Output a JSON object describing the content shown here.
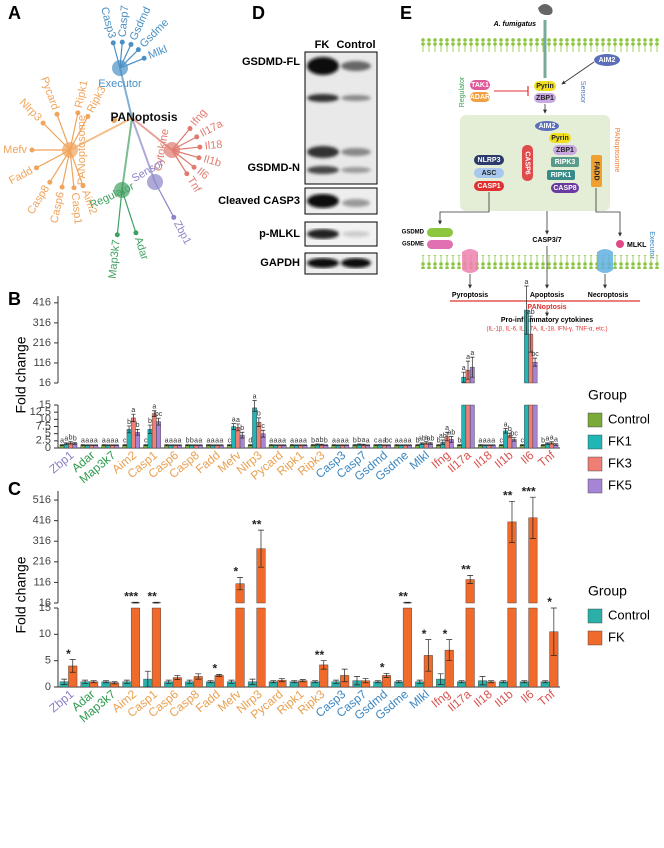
{
  "network": {
    "panel_label": "A",
    "center": "PANoptosis",
    "groups": [
      {
        "name": "Executor",
        "color": "#4a90c4",
        "genes": [
          "Casp3",
          "Casp7",
          "Gsdmd",
          "Gsdme",
          "Mlkl"
        ]
      },
      {
        "name": "Cytokine",
        "color": "#e07b6e",
        "genes": [
          "Ifng",
          "Il17a",
          "Il18",
          "Il1b",
          "Il6",
          "Tnf"
        ]
      },
      {
        "name": "Sensor",
        "color": "#8c86c8",
        "genes": [
          "Zbp1"
        ]
      },
      {
        "name": "Regulator",
        "color": "#3fa060",
        "genes": [
          "Map3k7",
          "Adar"
        ]
      },
      {
        "name": "PANoptosome",
        "color": "#f0a45c",
        "genes": [
          "Ripk3",
          "Ripk1",
          "Pycard",
          "Nlrp3",
          "Mefv",
          "Fadd",
          "Casp8",
          "Casp6",
          "Casp1",
          "Aim2"
        ]
      }
    ]
  },
  "blot": {
    "panel_label": "D",
    "lanes": [
      "FK",
      "Control"
    ],
    "rows": [
      "GSDMD-FL",
      "GSDMD-N",
      "Cleaved CASP3",
      "p-MLKL",
      "GAPDH"
    ]
  },
  "pathway": {
    "panel_label": "E",
    "pathogen": "A. fumigatus",
    "aim2_top": "AIM2",
    "tak1": "TAK1",
    "adar": "ADAR",
    "regulator": "Regulator",
    "pyrin_top": "Pyrin",
    "zbp1_top": "ZBP1",
    "sensor": "Sensor",
    "aim2": "AIM2",
    "pyrin": "Pyrin",
    "nlrp3": "NLRP3",
    "zbp1": "ZBP1",
    "asc": "ASC",
    "casp6": "CASP6",
    "ripk3": "RIPK3",
    "casp1": "CASP1",
    "ripk1": "RIPK1",
    "fadd": "FADD",
    "casp8": "CASP8",
    "panoptosome": "PANoptosome",
    "gsdmd": "GSDMD",
    "gsdme": "GSDME",
    "casp37": "CASP3/7",
    "mlkl": "MLKL",
    "executor": "Executor",
    "pyroptosis": "Pyroptosis",
    "apoptosis": "Apoptosis",
    "necroptosis": "Necroptosis",
    "panoptosis": "PANoptosis",
    "cytokines": "Pro-inflammatory cytokines",
    "cytokine_list": "(IL-1β, IL-6, IL-17A, IL-18, IFN-γ, TNF-α, etc.)"
  },
  "chart_data": [
    {
      "type": "bar",
      "panel_label": "B",
      "y_label": "Fold change",
      "legend_title": "Group",
      "categories": [
        "Zbp1",
        "Adar",
        "Map3k7",
        "Aim2",
        "Casp1",
        "Casp6",
        "Casp8",
        "Fadd",
        "Mefv",
        "Nlrp3",
        "Pycard",
        "Ripk1",
        "Ripk3",
        "Casp3",
        "Casp7",
        "Gsdmd",
        "Gsdme",
        "Mlkl",
        "Ifng",
        "Il17a",
        "Il18",
        "Il1b",
        "Il6",
        "Tnf"
      ],
      "category_colors": [
        "#8a7fc8",
        "#2e9a4e",
        "#2e9a4e",
        "#e8a050",
        "#e8a050",
        "#e8a050",
        "#e8a050",
        "#e8a050",
        "#e8a050",
        "#e8a050",
        "#e8a050",
        "#e8a050",
        "#e8a050",
        "#3a86c0",
        "#3a86c0",
        "#3a86c0",
        "#3a86c0",
        "#3a86c0",
        "#d9534f",
        "#d9534f",
        "#d9534f",
        "#d9534f",
        "#d9534f",
        "#d9534f"
      ],
      "lower_axis": {
        "ylim": [
          0,
          15
        ],
        "yticks": [
          0,
          2.5,
          5,
          7.5,
          10,
          12.5,
          15
        ]
      },
      "upper_axis": {
        "ylim": [
          16,
          450
        ],
        "yticks": [
          16,
          116,
          216,
          316,
          416
        ]
      },
      "series": [
        {
          "name": "Control",
          "color": "#7aab3a",
          "values": [
            1,
            1,
            1,
            1,
            1,
            1,
            1,
            1,
            1,
            1,
            1,
            1,
            1,
            1,
            1,
            1,
            1,
            1,
            1,
            1,
            1,
            1,
            1,
            1
          ],
          "errors": [
            0.2,
            0.2,
            0.2,
            0.2,
            0.2,
            0.2,
            0.2,
            0.2,
            0.2,
            0.2,
            0.2,
            0.2,
            0.2,
            0.2,
            0.2,
            0.2,
            0.2,
            0.2,
            0.2,
            0.2,
            0.2,
            0.2,
            0.2,
            0.2
          ],
          "letters": [
            "a",
            "a",
            "a",
            "c",
            "c",
            "a",
            "b",
            "a",
            "c",
            "d",
            "a",
            "a",
            "b",
            "a",
            "b",
            "c",
            "a",
            "b",
            "b",
            "b",
            "a",
            "c",
            "c",
            "b"
          ]
        },
        {
          "name": "FK1",
          "color": "#22b5b5",
          "values": [
            1.5,
            1,
            1,
            6.5,
            6.5,
            1,
            1,
            1,
            7.5,
            14,
            1,
            1,
            1.2,
            1,
            1.2,
            1.1,
            1,
            1.5,
            2,
            45,
            1,
            6,
            380,
            1.5
          ],
          "errors": [
            0.3,
            0.1,
            0.1,
            1.2,
            1.5,
            0.1,
            0.1,
            0.1,
            1,
            1.2,
            0.1,
            0.1,
            0.2,
            0.1,
            0.2,
            0.1,
            0.1,
            0.3,
            0.8,
            25,
            0.1,
            0.8,
            120,
            0.3
          ],
          "letters": [
            "a",
            "a",
            "a",
            "b",
            "b",
            "a",
            "b",
            "a",
            "a",
            "a",
            "a",
            "a",
            "a",
            "a",
            "b",
            "a",
            "a",
            "ab",
            "ab",
            "a",
            "a",
            "a",
            "a",
            "a"
          ]
        },
        {
          "name": "FK3",
          "color": "#ef7f74",
          "values": [
            1.8,
            1,
            1,
            10.5,
            12,
            1,
            1,
            1,
            7.2,
            9,
            1,
            1,
            1.1,
            1,
            1.1,
            1,
            1,
            1.8,
            4,
            80,
            1,
            4.5,
            260,
            1.8
          ],
          "errors": [
            0.4,
            0.1,
            0.1,
            1.3,
            1,
            0.1,
            0.1,
            0.1,
            1.2,
            1.5,
            0.1,
            0.1,
            0.2,
            0.1,
            0.2,
            0.1,
            0.1,
            0.4,
            1.5,
            45,
            0.1,
            0.7,
            90,
            0.4
          ],
          "letters": [
            "b",
            "a",
            "a",
            "a",
            "a",
            "a",
            "a",
            "a",
            "a",
            "b",
            "a",
            "a",
            "b",
            "a",
            "a",
            "a",
            "a",
            "a",
            "a",
            "a",
            "a",
            "b",
            "ab",
            "a"
          ]
        },
        {
          "name": "FK5",
          "color": "#a685d6",
          "values": [
            1.6,
            1,
            1,
            5.5,
            9.2,
            1,
            1,
            1,
            4.5,
            5,
            1,
            1,
            1,
            1,
            1,
            1,
            1,
            1.6,
            3,
            95,
            1,
            3,
            120,
            1.2
          ],
          "errors": [
            0.3,
            0.1,
            0.1,
            1,
            1.2,
            0.1,
            0.1,
            0.1,
            1,
            1.2,
            0.1,
            0.1,
            0.1,
            0.1,
            0.1,
            0.1,
            0.1,
            0.3,
            1,
            50,
            0.1,
            0.6,
            20,
            0.3
          ],
          "letters": [
            "b",
            "a",
            "a",
            "b",
            "bc",
            "a",
            "a",
            "a",
            "b",
            "c",
            "a",
            "a",
            "b",
            "a",
            "a",
            "bc",
            "a",
            "ab",
            "ab",
            "a",
            "a",
            "bc",
            "bc",
            "a"
          ]
        }
      ]
    },
    {
      "type": "bar",
      "panel_label": "C",
      "y_label": "Fold change",
      "legend_title": "Group",
      "categories": [
        "Zbp1",
        "Adar",
        "Map3k7",
        "Aim2",
        "Casp1",
        "Casp6",
        "Casp8",
        "Fadd",
        "Mefv",
        "Nlrp3",
        "Pycard",
        "Ripk1",
        "Ripk3",
        "Casp3",
        "Casp7",
        "Gsdmd",
        "Gsdme",
        "Mlkl",
        "Ifng",
        "Il17a",
        "Il18",
        "Il1b",
        "Il6",
        "Tnf"
      ],
      "category_colors": [
        "#8a7fc8",
        "#2e9a4e",
        "#2e9a4e",
        "#e8a050",
        "#e8a050",
        "#e8a050",
        "#e8a050",
        "#e8a050",
        "#e8a050",
        "#e8a050",
        "#e8a050",
        "#e8a050",
        "#e8a050",
        "#3a86c0",
        "#3a86c0",
        "#3a86c0",
        "#3a86c0",
        "#3a86c0",
        "#d9534f",
        "#d9534f",
        "#d9534f",
        "#d9534f",
        "#d9534f",
        "#d9534f"
      ],
      "lower_axis": {
        "ylim": [
          0,
          15
        ],
        "yticks": [
          0,
          5,
          10,
          15
        ]
      },
      "upper_axis": {
        "ylim": [
          16,
          560
        ],
        "yticks": [
          16,
          116,
          216,
          316,
          416,
          516
        ]
      },
      "series": [
        {
          "name": "Control",
          "color": "#2ab0a8",
          "values": [
            1,
            1,
            1,
            1,
            1.5,
            1,
            1,
            1,
            1,
            1,
            1,
            1,
            1,
            1,
            1.2,
            1,
            1,
            1,
            1.5,
            1,
            1.2,
            1,
            1,
            1
          ],
          "errors": [
            0.5,
            0.3,
            0.2,
            0.3,
            1.5,
            0.3,
            0.3,
            0.2,
            0.3,
            0.5,
            0.2,
            0.2,
            0.2,
            0.3,
            0.8,
            0.2,
            0.2,
            0.3,
            1,
            0.2,
            0.8,
            0.2,
            0.2,
            0.2
          ]
        },
        {
          "name": "FK",
          "color": "#ef6a2b",
          "values": [
            4,
            1,
            0.8,
            18,
            18,
            1.8,
            2,
            2.2,
            110,
            280,
            1.3,
            1.2,
            4.2,
            2.2,
            1.2,
            2.2,
            18,
            6,
            7,
            130,
            1,
            410,
            430,
            10.5
          ],
          "errors": [
            1.2,
            0.2,
            0.2,
            2,
            2,
            0.4,
            0.5,
            0.2,
            30,
            90,
            0.3,
            0.2,
            0.8,
            1.2,
            0.4,
            0.4,
            2,
            3,
            2,
            20,
            0.2,
            100,
            100,
            4.5
          ]
        }
      ],
      "significance": [
        "*",
        null,
        null,
        "***",
        "**",
        null,
        null,
        "*",
        "*",
        "**",
        null,
        null,
        "**",
        null,
        null,
        "*",
        "**",
        "*",
        "*",
        "**",
        null,
        "**",
        "***",
        "*"
      ]
    }
  ]
}
